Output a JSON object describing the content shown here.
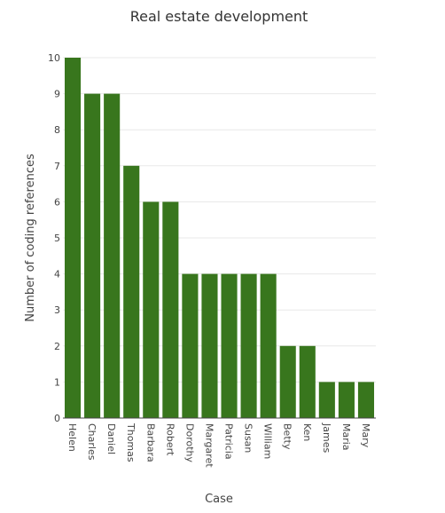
{
  "chart_data": {
    "type": "bar",
    "title": "Real estate development",
    "xlabel": "Case",
    "ylabel": "Number of coding references",
    "categories": [
      "Helen",
      "Charles",
      "Daniel",
      "Thomas",
      "Barbara",
      "Robert",
      "Dorothy",
      "Margaret",
      "Patricia",
      "Susan",
      "William",
      "Betty",
      "Ken",
      "James",
      "Maria",
      "Mary"
    ],
    "values": [
      10,
      9,
      9,
      7,
      6,
      6,
      4,
      4,
      4,
      4,
      4,
      2,
      2,
      1,
      1,
      1
    ],
    "ylim": [
      0,
      10
    ],
    "yticks": [
      "0",
      "1",
      "2",
      "3",
      "4",
      "5",
      "6",
      "7",
      "8",
      "9",
      "10"
    ],
    "grid": true,
    "legend": "none",
    "bar_color": "#38761d"
  }
}
